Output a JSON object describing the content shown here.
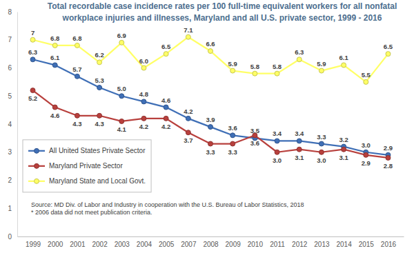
{
  "chart_data": {
    "type": "line",
    "title": "Total recordable case incidence rates per 100 full-time equivalent workers for all nonfatal workplace injuries and illnesses, Maryland and all U.S. private sector, 1999 - 2016",
    "annotations": [
      "Source: MD Div. of Labor and Industry in cooperation with the U.S. Bureau of Labor Statistics, 2018",
      "* 2006 data did not meet publication criteria."
    ],
    "categories": [
      "1999",
      "2000",
      "2001",
      "2002",
      "2003",
      "2004",
      "2005",
      "2007",
      "2008",
      "2009",
      "2010",
      "2011",
      "2012",
      "2013",
      "2014",
      "2015",
      "2016"
    ],
    "series": [
      {
        "name": "All United States Private Sector",
        "color": "#3f6fb6",
        "marker": "circle",
        "values": [
          6.3,
          6.1,
          5.7,
          5.3,
          5.0,
          4.8,
          4.6,
          4.2,
          3.9,
          3.6,
          3.5,
          3.4,
          3.4,
          3.3,
          3.2,
          3.0,
          2.9
        ],
        "value_labels": [
          "6.3",
          "6.1",
          "5.7",
          "5.3",
          "5.0",
          "4.8",
          "4.6",
          "4.2",
          "3.9",
          "3.6",
          "3.5",
          "3.4",
          "3.4",
          "3.3",
          "3.2",
          "3.0",
          "2.9"
        ]
      },
      {
        "name": "Maryland Private Sector",
        "color": "#b8403d",
        "marker": "circle",
        "values": [
          5.2,
          4.6,
          4.3,
          4.3,
          4.1,
          4.2,
          4.2,
          3.7,
          3.3,
          3.3,
          3.6,
          3.0,
          3.1,
          3.0,
          3.1,
          2.9,
          2.8
        ],
        "value_labels": [
          "5.2",
          "4.6",
          "4.3",
          "4.3",
          "4.1",
          "4.2",
          "4.2",
          "3.7",
          "3.3",
          "3.3",
          "3.6",
          "3.0",
          "3.1",
          "3.0",
          "3.1",
          "2.9",
          "2.8"
        ]
      },
      {
        "name": "Maryland State and Local Govt.",
        "color": "#ffff66",
        "marker": "circle",
        "values": [
          7,
          6.8,
          6.8,
          6.2,
          6.9,
          6.0,
          6.5,
          7.1,
          6.6,
          5.9,
          5.8,
          5.8,
          6.3,
          5.9,
          6.1,
          5.5,
          6.5
        ],
        "value_labels": [
          "7",
          "6.8",
          "6.8",
          "6.2",
          "6.9",
          "6.0",
          "6.5",
          "7.1",
          "6.6",
          "5.9",
          "5.8",
          "5.8",
          "6.3",
          "5.9",
          "6.1",
          "5.5",
          "6.5"
        ]
      }
    ],
    "ylim": [
      0,
      8
    ],
    "yticks": [
      0,
      1,
      2,
      3,
      4,
      5,
      6,
      7,
      8
    ],
    "grid": false,
    "legend": "left",
    "data_labels": true
  }
}
